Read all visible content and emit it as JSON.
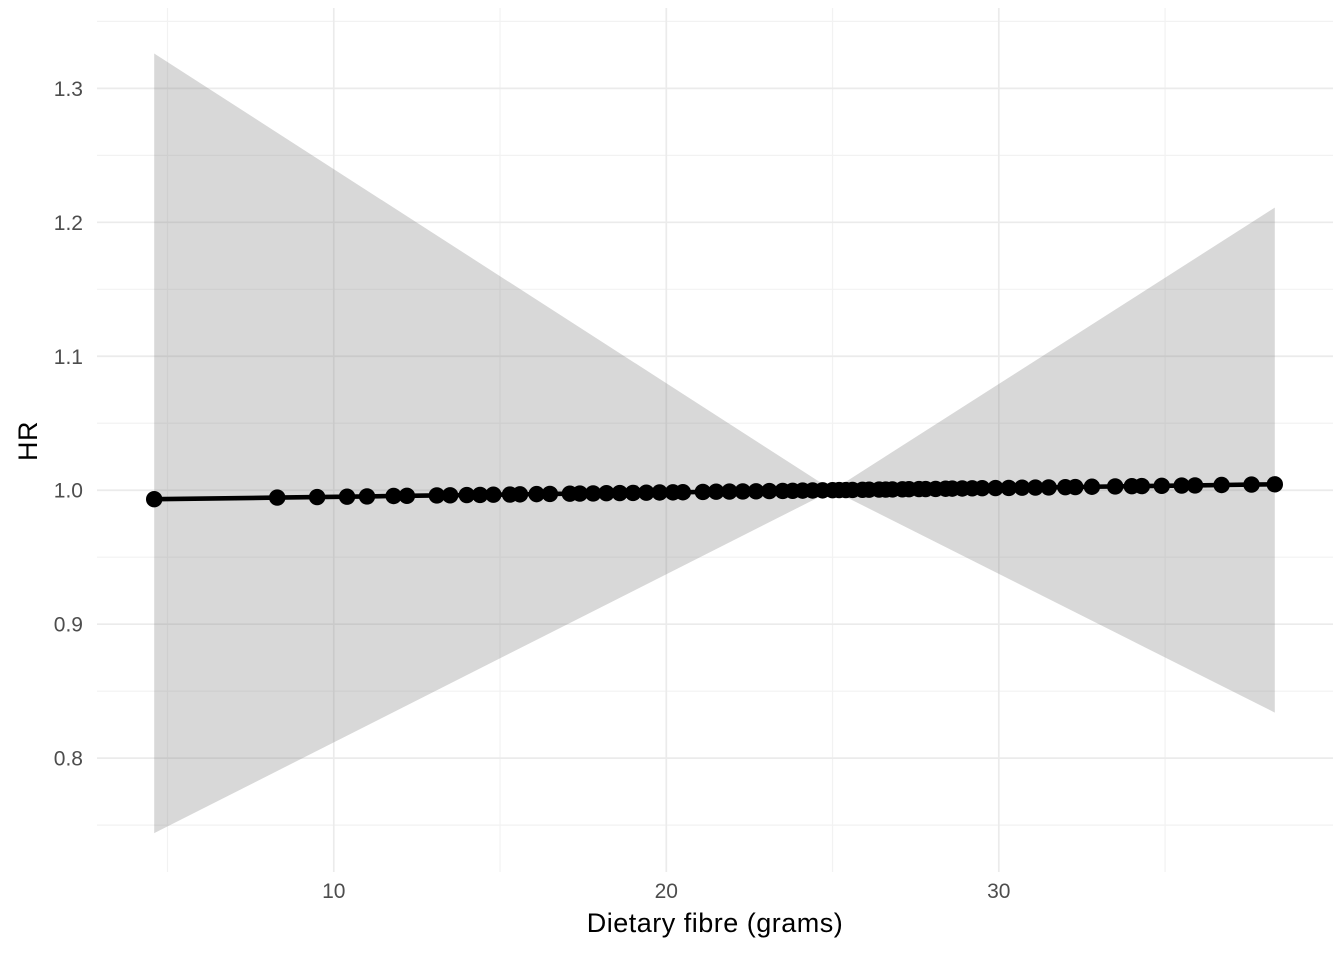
{
  "figure": {
    "background": "#FFFFFF"
  },
  "chart_data": {
    "type": "line",
    "title": "",
    "xlabel": "Dietary fibre (grams)",
    "ylabel": "HR",
    "xlim": [
      2.88,
      40.05
    ],
    "ylim": [
      0.715,
      1.36
    ],
    "x_ticks": [
      10,
      20,
      30
    ],
    "x_tick_labels": [
      "10",
      "20",
      "30"
    ],
    "x_minor_ticks": [
      5,
      15,
      25,
      35
    ],
    "y_ticks": [
      0.8,
      0.9,
      1.0,
      1.1,
      1.2,
      1.3
    ],
    "y_tick_labels": [
      "0.8",
      "0.9",
      "1.0",
      "1.1",
      "1.2",
      "1.3"
    ],
    "y_minor_ticks": [
      0.75,
      0.85,
      0.95,
      1.05,
      1.15,
      1.25,
      1.35
    ],
    "grid": true,
    "legend": "none",
    "series": [
      {
        "name": "fitted-hr",
        "marker": "point",
        "x": [
          4.6,
          8.3,
          9.5,
          10.4,
          11.0,
          11.8,
          12.2,
          13.1,
          13.5,
          14.0,
          14.4,
          14.8,
          15.3,
          15.6,
          16.1,
          16.5,
          17.1,
          17.4,
          17.8,
          18.2,
          18.6,
          19.0,
          19.4,
          19.8,
          20.2,
          20.5,
          21.1,
          21.5,
          21.9,
          22.3,
          22.7,
          23.1,
          23.5,
          23.8,
          24.1,
          24.4,
          24.7,
          25.0,
          25.2,
          25.4,
          25.6,
          25.9,
          26.1,
          26.4,
          26.6,
          26.8,
          27.1,
          27.3,
          27.6,
          27.8,
          28.1,
          28.4,
          28.6,
          28.9,
          29.2,
          29.5,
          29.9,
          30.3,
          30.7,
          31.1,
          31.5,
          32.0,
          32.3,
          32.8,
          33.5,
          34.0,
          34.3,
          34.9,
          35.5,
          35.9,
          36.7,
          37.6,
          38.3
        ],
        "y": [
          0.9933,
          0.9945,
          0.9949,
          0.9952,
          0.9954,
          0.9957,
          0.9958,
          0.9961,
          0.9962,
          0.9964,
          0.9965,
          0.9967,
          0.9968,
          0.9969,
          0.9971,
          0.9972,
          0.9974,
          0.9975,
          0.9976,
          0.9978,
          0.9979,
          0.998,
          0.9982,
          0.9983,
          0.9984,
          0.9985,
          0.9987,
          0.9989,
          0.999,
          0.9991,
          0.9992,
          0.9994,
          0.9995,
          0.9996,
          0.9997,
          0.9998,
          0.9999,
          1.0,
          1.0001,
          1.0001,
          1.0002,
          1.0003,
          1.0004,
          1.0005,
          1.0005,
          1.0006,
          1.0007,
          1.0008,
          1.0009,
          1.0009,
          1.001,
          1.0011,
          1.0012,
          1.0013,
          1.0014,
          1.0015,
          1.0016,
          1.0017,
          1.0019,
          1.002,
          1.0021,
          1.0023,
          1.0024,
          1.0026,
          1.0028,
          1.003,
          1.0031,
          1.0033,
          1.0035,
          1.0036,
          1.0039,
          1.0042,
          1.0044
        ]
      }
    ],
    "ribbon": {
      "name": "confidence-band",
      "x": [
        4.6,
        25.0,
        38.3
      ],
      "upper": [
        1.326,
        1.0,
        1.211
      ],
      "lower": [
        0.744,
        1.0,
        0.834
      ],
      "reference_point": {
        "x": 25.0,
        "y": 1.0
      }
    },
    "colors": {
      "band": "#7F7F7F",
      "band_opacity": 0.3,
      "line": "#000000",
      "point": "#000000",
      "grid_major": "#EBEBEB",
      "grid_minor": "#F2F2F2",
      "axis_text": "#4D4D4D",
      "axis_title": "#000000",
      "background": "#FFFFFF"
    }
  }
}
